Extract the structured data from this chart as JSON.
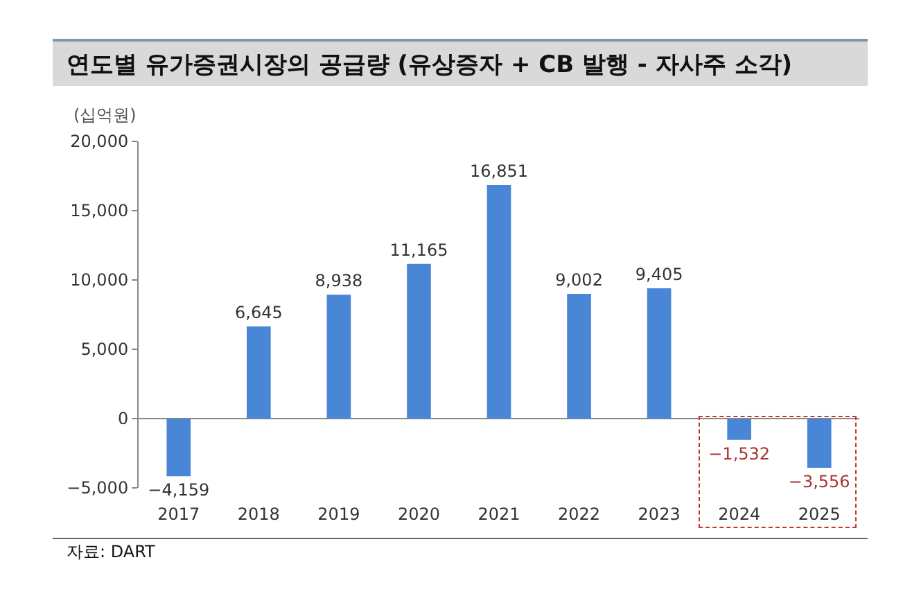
{
  "chart_data": {
    "type": "bar",
    "title": "연도별 유가증권시장의 공급량 (유상증자 + CB 발행 - 자사주 소각)",
    "ylabel": "(십억원)",
    "categories": [
      "2017",
      "2018",
      "2019",
      "2020",
      "2021",
      "2022",
      "2023",
      "2024",
      "2025"
    ],
    "values": [
      -4159,
      6645,
      8938,
      11165,
      16851,
      9002,
      9405,
      -1532,
      -3556
    ],
    "color": "#4a86d6",
    "value_labels": [
      "−4,159",
      "6,645",
      "8,938",
      "11,165",
      "16,851",
      "9,002",
      "9,405",
      "−1,532",
      "−3,556"
    ],
    "ylim": [
      -5000,
      20000
    ],
    "yticks": [
      {
        "value": -5000,
        "label": "−5,000"
      },
      0,
      {
        "value": 5000,
        "label": "5,000"
      },
      {
        "value": 10000,
        "label": "10,000"
      },
      {
        "value": 15000,
        "label": "15,000"
      },
      {
        "value": 20000,
        "label": "20,000"
      }
    ],
    "annotations": [
      "자료: DART"
    ]
  }
}
